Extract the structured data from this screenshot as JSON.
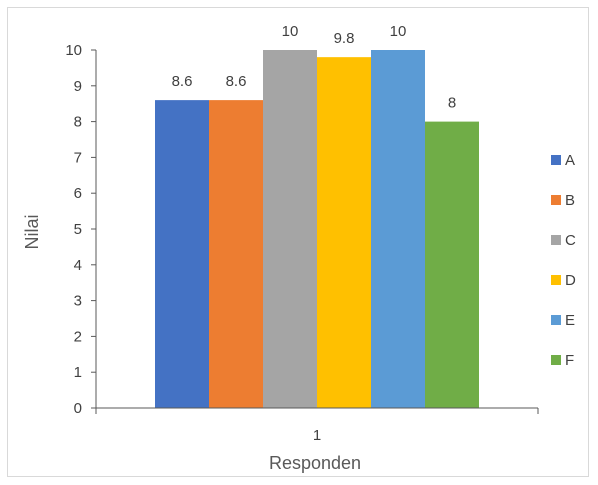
{
  "chart_data": {
    "type": "bar",
    "categories": [
      "1"
    ],
    "series": [
      {
        "name": "A",
        "values": [
          8.6
        ],
        "color": "#4472c4"
      },
      {
        "name": "B",
        "values": [
          8.6
        ],
        "color": "#ed7d31"
      },
      {
        "name": "C",
        "values": [
          10
        ],
        "color": "#a5a5a5"
      },
      {
        "name": "D",
        "values": [
          9.8
        ],
        "color": "#ffc000"
      },
      {
        "name": "E",
        "values": [
          10
        ],
        "color": "#5b9bd5"
      },
      {
        "name": "F",
        "values": [
          8
        ],
        "color": "#70ad47"
      }
    ],
    "data_labels": [
      "8.6",
      "8.6",
      "10",
      "9.8",
      "10",
      "8"
    ],
    "title": "",
    "xlabel": "Responden",
    "ylabel": "Nilai",
    "ylim": [
      0,
      10
    ],
    "yticks": [
      "0",
      "1",
      "2",
      "3",
      "4",
      "5",
      "6",
      "7",
      "8",
      "9",
      "10"
    ],
    "grid": false,
    "legend_position": "right"
  }
}
